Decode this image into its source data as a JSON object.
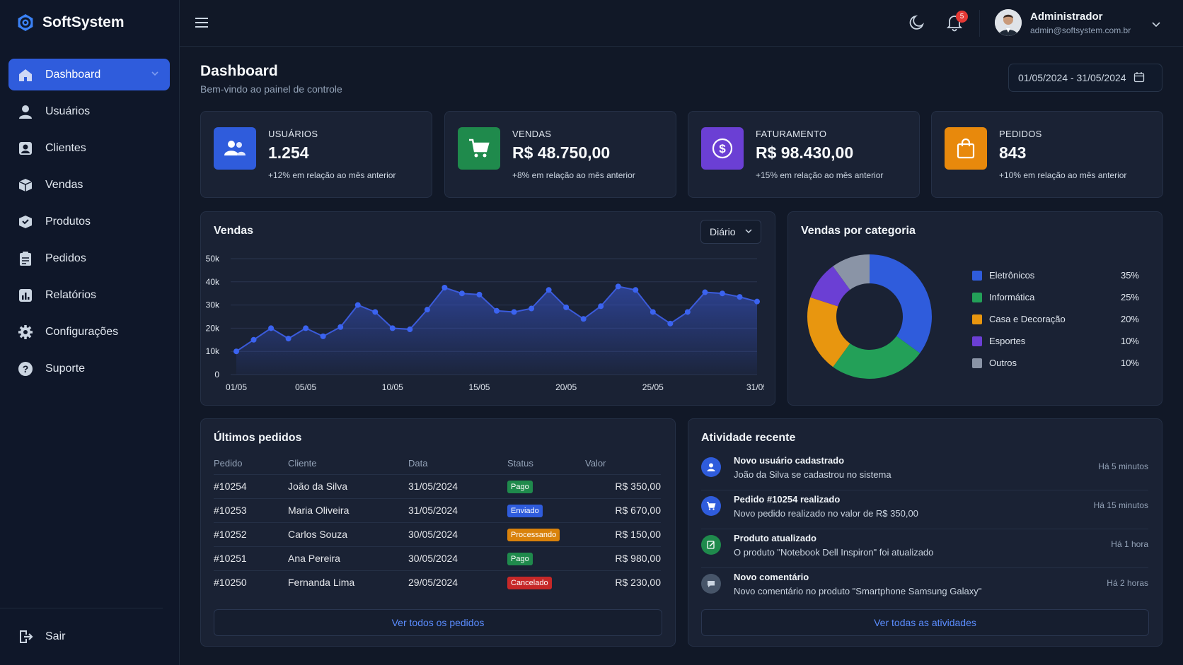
{
  "brand": {
    "title": "SoftSystem"
  },
  "sidebar": {
    "items": [
      {
        "label": "Dashboard",
        "icon": "home-icon"
      },
      {
        "label": "Usuários",
        "icon": "user-icon"
      },
      {
        "label": "Clientes",
        "icon": "contact-icon"
      },
      {
        "label": "Vendas",
        "icon": "box-icon"
      },
      {
        "label": "Produtos",
        "icon": "package-icon"
      },
      {
        "label": "Pedidos",
        "icon": "clipboard-icon"
      },
      {
        "label": "Relatórios",
        "icon": "report-icon"
      },
      {
        "label": "Configurações",
        "icon": "gear-icon"
      },
      {
        "label": "Suporte",
        "icon": "help-icon"
      }
    ],
    "logout_label": "Sair"
  },
  "topbar": {
    "notifications_count": "5",
    "user_name": "Administrador",
    "user_email": "admin@softsystem.com.br"
  },
  "header": {
    "title": "Dashboard",
    "subtitle": "Bem-vindo ao painel de controle",
    "date_range": "01/05/2024 - 31/05/2024"
  },
  "kpis": [
    {
      "label": "USUÁRIOS",
      "value": "1.254",
      "delta": "+12% em relação ao mês anterior",
      "color": "#2f5cdc"
    },
    {
      "label": "VENDAS",
      "value": "R$ 48.750,00",
      "delta": "+8% em relação ao mês anterior",
      "color": "#1f8a4c"
    },
    {
      "label": "FATURAMENTO",
      "value": "R$ 98.430,00",
      "delta": "+15% em relação ao mês anterior",
      "color": "#6b3fd4"
    },
    {
      "label": "PEDIDOS",
      "value": "843",
      "delta": "+10% em relação ao mês anterior",
      "color": "#e8890c"
    }
  ],
  "sales_chart": {
    "title": "Vendas",
    "period_select": "Diário"
  },
  "chart_data": [
    {
      "type": "area",
      "title": "Vendas",
      "x": [
        "01/05",
        "02/05",
        "03/05",
        "04/05",
        "05/05",
        "06/05",
        "07/05",
        "08/05",
        "09/05",
        "10/05",
        "11/05",
        "12/05",
        "13/05",
        "14/05",
        "15/05",
        "16/05",
        "17/05",
        "18/05",
        "19/05",
        "20/05",
        "21/05",
        "22/05",
        "23/05",
        "24/05",
        "25/05",
        "26/05",
        "27/05",
        "28/05",
        "29/05",
        "30/05",
        "31/05"
      ],
      "x_tick_labels": [
        "01/05",
        "05/05",
        "10/05",
        "15/05",
        "20/05",
        "25/05",
        "31/05"
      ],
      "values": [
        10000,
        15000,
        20000,
        15500,
        20000,
        16500,
        20500,
        30000,
        27000,
        20000,
        19500,
        28000,
        37500,
        35000,
        34500,
        27500,
        27000,
        28500,
        36500,
        29000,
        24000,
        29500,
        38000,
        36500,
        27000,
        22000,
        27000,
        35500,
        35000,
        33500,
        31500
      ],
      "y_ticks": [
        "0",
        "10k",
        "20k",
        "30k",
        "40k",
        "50k"
      ],
      "ylim": [
        0,
        50000
      ],
      "grid": true,
      "color": "#3b5bdb"
    },
    {
      "type": "pie",
      "title": "Vendas por categoria",
      "labels": [
        "Eletrônicos",
        "Informática",
        "Casa e Decoração",
        "Esportes",
        "Outros"
      ],
      "values": [
        35,
        25,
        20,
        10,
        10
      ],
      "pct_labels": [
        "35%",
        "25%",
        "20%",
        "10%",
        "10%"
      ],
      "colors": [
        "#2f5cdc",
        "#23a058",
        "#e8960f",
        "#6b3fd4",
        "#8a94a6"
      ],
      "legend": "right"
    }
  ],
  "orders": {
    "title": "Últimos pedidos",
    "columns": [
      "Pedido",
      "Cliente",
      "Data",
      "Status",
      "Valor"
    ],
    "rows": [
      {
        "id": "#10254",
        "client": "João da Silva",
        "date": "31/05/2024",
        "status": "Pago",
        "status_color": "#1f8a4c",
        "value": "R$ 350,00"
      },
      {
        "id": "#10253",
        "client": "Maria Oliveira",
        "date": "31/05/2024",
        "status": "Enviado",
        "status_color": "#2f5cdc",
        "value": "R$ 670,00"
      },
      {
        "id": "#10252",
        "client": "Carlos Souza",
        "date": "30/05/2024",
        "status": "Processando",
        "status_color": "#d9820b",
        "value": "R$ 150,00"
      },
      {
        "id": "#10251",
        "client": "Ana Pereira",
        "date": "30/05/2024",
        "status": "Pago",
        "status_color": "#1f8a4c",
        "value": "R$ 980,00"
      },
      {
        "id": "#10250",
        "client": "Fernanda Lima",
        "date": "29/05/2024",
        "status": "Cancelado",
        "status_color": "#c62828",
        "value": "R$ 230,00"
      }
    ],
    "view_all": "Ver todos os pedidos"
  },
  "activity": {
    "title": "Atividade recente",
    "items": [
      {
        "title": "Novo usuário cadastrado",
        "desc": "João da Silva se cadastrou no sistema",
        "time": "Há 5 minutos",
        "icon": "user-icon",
        "color": "#2f5cdc"
      },
      {
        "title": "Pedido #10254 realizado",
        "desc": "Novo pedido realizado no valor de R$ 350,00",
        "time": "Há 15 minutos",
        "icon": "cart-icon",
        "color": "#2f5cdc"
      },
      {
        "title": "Produto atualizado",
        "desc": "O produto \"Notebook Dell Inspiron\" foi atualizado",
        "time": "Há 1 hora",
        "icon": "edit-icon",
        "color": "#1f8a4c"
      },
      {
        "title": "Novo comentário",
        "desc": "Novo comentário no produto \"Smartphone Samsung Galaxy\"",
        "time": "Há 2 horas",
        "icon": "comment-icon",
        "color": "#475569"
      }
    ],
    "view_all": "Ver todas as atividades"
  }
}
